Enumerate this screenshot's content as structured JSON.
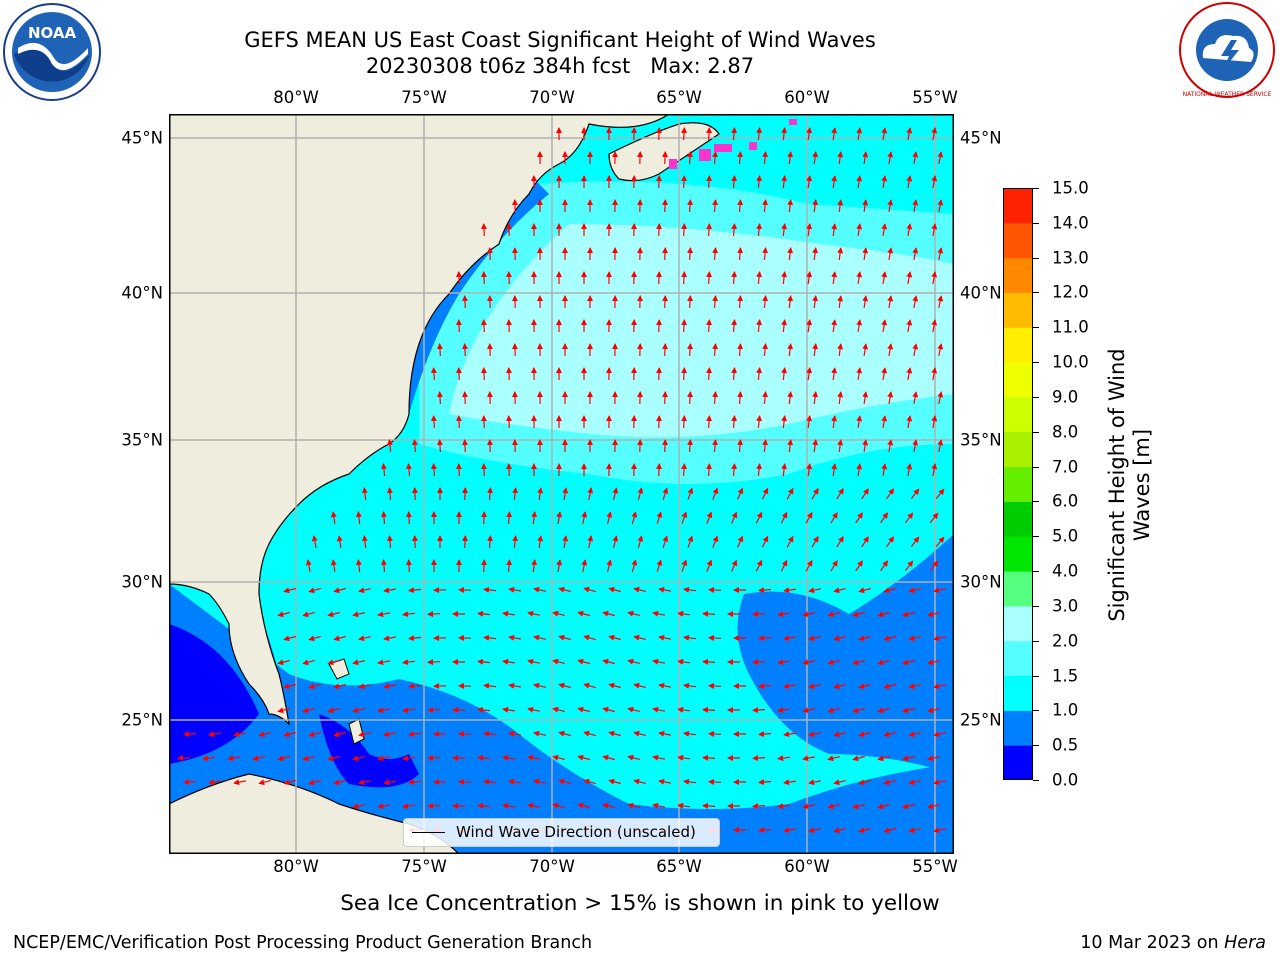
{
  "title": {
    "line1": "GEFS MEAN US East Coast Significant Height of Wind Waves",
    "line2": "20230308 t06z 384h fcst   Max: 2.87"
  },
  "map": {
    "lon_ticks": [
      "80°W",
      "75°W",
      "70°W",
      "65°W",
      "60°W",
      "55°W"
    ],
    "lat_ticks": [
      "45°N",
      "40°N",
      "35°N",
      "30°N",
      "25°N"
    ],
    "lon_range": [
      -85,
      -54.3
    ],
    "lat_range": [
      20.5,
      45.9
    ],
    "colors": {
      "land": "#efedde",
      "coast": "#000000",
      "grid": "#b0b0b0",
      "arrow": "#ff0000",
      "ice": "#ff33cc"
    }
  },
  "legend": {
    "label": "Wind Wave Direction (unscaled)"
  },
  "colorbar": {
    "label_line1": "Significant Height of Wind",
    "label_line2": "Waves [m]",
    "ticks": [
      "15.0",
      "14.0",
      "13.0",
      "12.0",
      "11.0",
      "10.0",
      "9.0",
      "8.0",
      "7.0",
      "6.0",
      "5.0",
      "4.0",
      "3.0",
      "2.0",
      "1.5",
      "1.0",
      "0.5",
      "0.0"
    ],
    "colors_bottom_to_top": [
      "#0000ff",
      "#0080ff",
      "#00ffff",
      "#55ffff",
      "#aaffff",
      "#55ff80",
      "#00e600",
      "#00cc00",
      "#66ee00",
      "#aaee00",
      "#ccff00",
      "#eeff00",
      "#ffee00",
      "#ffbb00",
      "#ff8800",
      "#ff5500",
      "#ff2200"
    ]
  },
  "sea_ice_note": "Sea Ice Concentration > 15% is shown in pink to yellow",
  "footer": {
    "left": "NCEP/EMC/Verification Post Processing Product Generation Branch",
    "date": "10 Mar 2023 on ",
    "machine": "Hera"
  },
  "logos": {
    "noaa": "NOAA",
    "nws": "NATIONAL WEATHER SERVICE"
  }
}
